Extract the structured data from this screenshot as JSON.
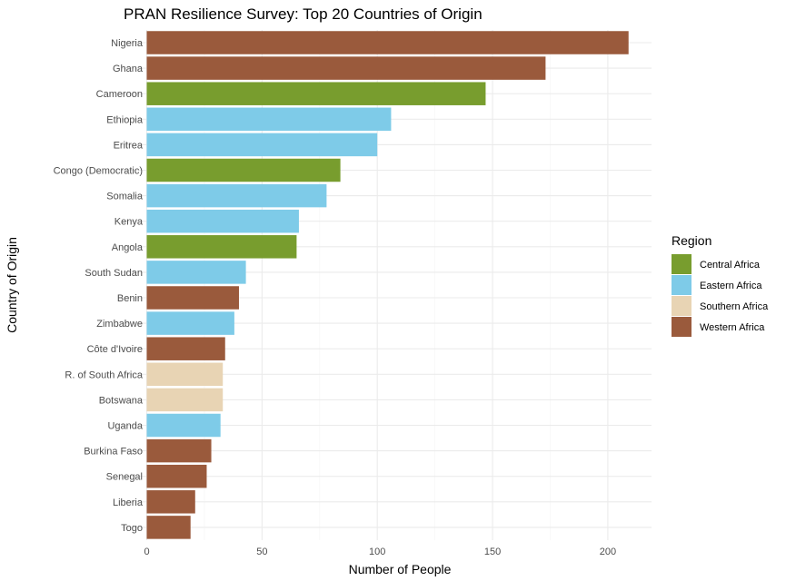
{
  "chart_data": {
    "type": "bar",
    "orientation": "horizontal",
    "title": "PRAN Resilience Survey: Top 20 Countries of Origin",
    "xlabel": "Number of People",
    "ylabel": "Country of Origin",
    "xlim": [
      0,
      218
    ],
    "x_ticks": [
      0,
      50,
      100,
      150,
      200
    ],
    "grid": true,
    "legend": {
      "title": "Region",
      "position": "right",
      "entries": [
        {
          "name": "Central Africa",
          "color": "#789D2E"
        },
        {
          "name": "Eastern Africa",
          "color": "#7ECBE8"
        },
        {
          "name": "Southern Africa",
          "color": "#E8D4B4"
        },
        {
          "name": "Western Africa",
          "color": "#9A5A3C"
        }
      ]
    },
    "categories": [
      "Nigeria",
      "Ghana",
      "Cameroon",
      "Ethiopia",
      "Eritrea",
      "Congo (Democratic)",
      "Somalia",
      "Kenya",
      "Angola",
      "South Sudan",
      "Benin",
      "Zimbabwe",
      "Côte d'Ivoire",
      "R. of South Africa",
      "Botswana",
      "Uganda",
      "Burkina Faso",
      "Senegal",
      "Liberia",
      "Togo"
    ],
    "values": [
      209,
      173,
      147,
      106,
      100,
      84,
      78,
      66,
      65,
      43,
      40,
      38,
      34,
      33,
      33,
      32,
      28,
      26,
      21,
      19
    ],
    "regions": [
      "Western Africa",
      "Western Africa",
      "Central Africa",
      "Eastern Africa",
      "Eastern Africa",
      "Central Africa",
      "Eastern Africa",
      "Eastern Africa",
      "Central Africa",
      "Eastern Africa",
      "Western Africa",
      "Eastern Africa",
      "Western Africa",
      "Southern Africa",
      "Southern Africa",
      "Eastern Africa",
      "Western Africa",
      "Western Africa",
      "Western Africa",
      "Western Africa"
    ]
  }
}
